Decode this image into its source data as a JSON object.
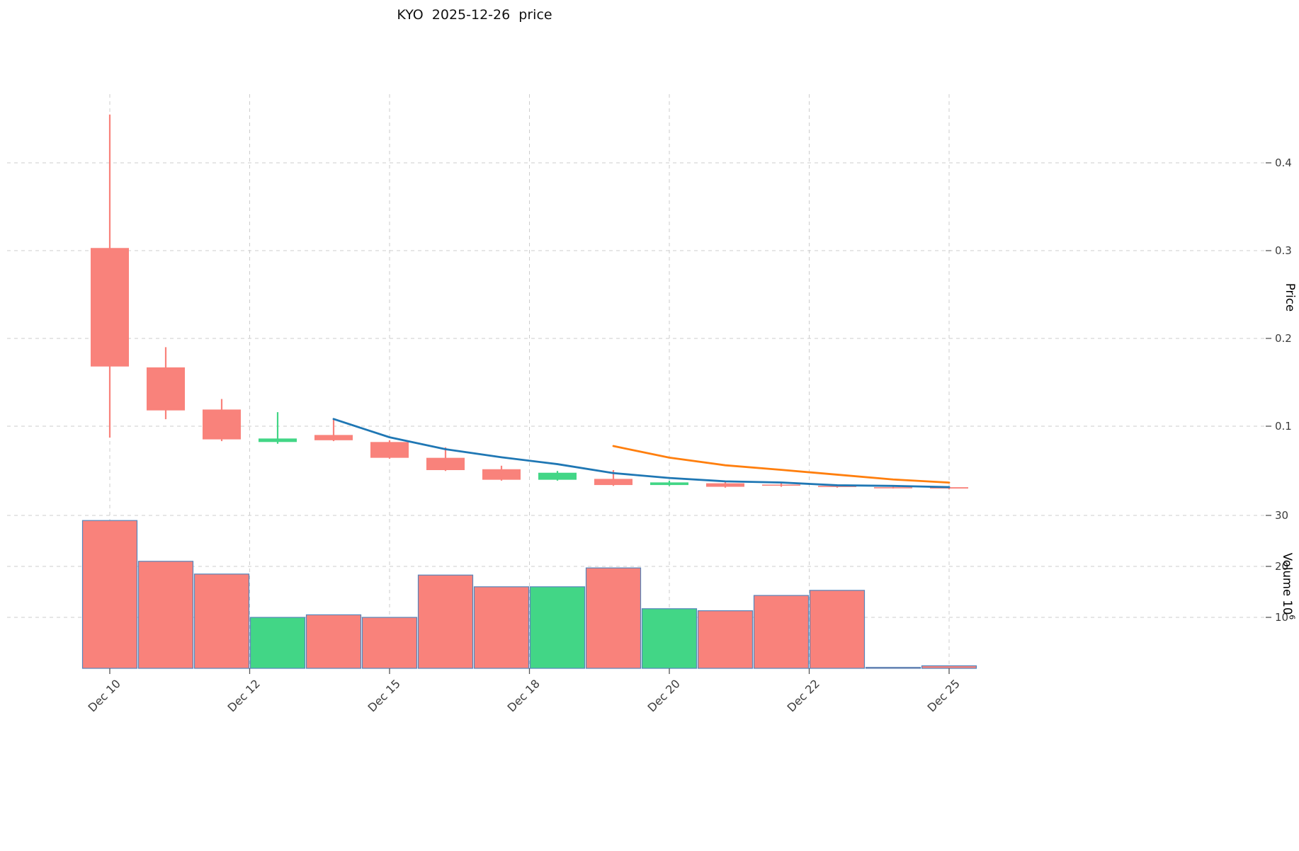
{
  "title": "KYO  2025-12-26  price",
  "price_axis_label": "Price",
  "volume_axis_label": {
    "text": "Volume",
    "base": "10",
    "exponent": "6"
  },
  "chart_data": {
    "type": "candlestick",
    "symbol": "KYO",
    "as_of_date": "2025-12-26",
    "legend_position": "none",
    "grid": "dashed",
    "dates": [
      "Dec 10",
      "Dec 11",
      "Dec 12",
      "Dec 13",
      "Dec 14",
      "Dec 15",
      "Dec 16",
      "Dec 17",
      "Dec 18",
      "Dec 19",
      "Dec 20",
      "Dec 21",
      "Dec 22",
      "Dec 23",
      "Dec 24",
      "Dec 25"
    ],
    "open": [
      0.303,
      0.167,
      0.119,
      0.082,
      0.09,
      0.082,
      0.064,
      0.051,
      0.039,
      0.04,
      0.033,
      0.035,
      0.0335,
      0.032,
      0.0305,
      0.0305
    ],
    "high": [
      0.455,
      0.19,
      0.131,
      0.116,
      0.109,
      0.084,
      0.076,
      0.055,
      0.049,
      0.05,
      0.038,
      0.037,
      0.035,
      0.033,
      0.031,
      0.031
    ],
    "low": [
      0.087,
      0.108,
      0.083,
      0.08,
      0.083,
      0.063,
      0.049,
      0.038,
      0.038,
      0.032,
      0.032,
      0.03,
      0.031,
      0.03,
      0.029,
      0.028
    ],
    "close": [
      0.168,
      0.118,
      0.085,
      0.086,
      0.084,
      0.064,
      0.05,
      0.039,
      0.047,
      0.033,
      0.036,
      0.031,
      0.0325,
      0.031,
      0.0295,
      0.029
    ],
    "volume_millions": [
      29.0,
      21.0,
      18.5,
      10.0,
      10.5,
      10.0,
      18.3,
      16.0,
      16.0,
      19.7,
      11.7,
      11.3,
      14.3,
      15.3,
      0.2,
      0.5
    ],
    "ma_fast": {
      "name": "MA5",
      "start_index": 4,
      "values": [
        0.1082,
        0.0874,
        0.0738,
        0.0646,
        0.0568,
        0.0466,
        0.041,
        0.0372,
        0.0359,
        0.0327,
        0.032,
        0.0306
      ]
    },
    "ma_slow": {
      "name": "MA10",
      "start_index": 9,
      "values": [
        0.0774,
        0.0642,
        0.0555,
        0.0503,
        0.0448,
        0.0393,
        0.0358
      ]
    },
    "x_tick_labels": [
      "Dec 10",
      "Dec 12",
      "Dec 15",
      "Dec 18",
      "Dec 20",
      "Dec 22",
      "Dec 25"
    ],
    "x_tick_positions": [
      0,
      2.5,
      5,
      7.5,
      10,
      12.5,
      15
    ],
    "price_ticks": [
      "0.1",
      "0.2",
      "0.3",
      "0.4"
    ],
    "price_tick_values": [
      0.1,
      0.2,
      0.3,
      0.4
    ],
    "price_ylim": [
      0.013,
      0.478
    ],
    "volume_ticks": [
      "10",
      "20",
      "30"
    ],
    "volume_tick_values": [
      10,
      20,
      30
    ],
    "volume_ylim": [
      0,
      32.2
    ],
    "colors": {
      "up": "#42d686",
      "down": "#f9827b",
      "ma_fast": "#1f77b4",
      "ma_slow": "#ff7f0e",
      "volume_edge": "#5585bb",
      "grid": "#cdcdcd"
    }
  }
}
